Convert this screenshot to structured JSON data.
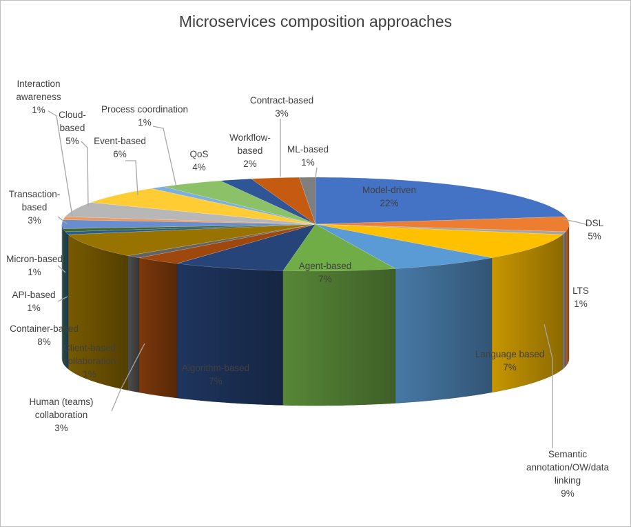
{
  "chart_data": {
    "type": "pie",
    "title": "Microservices composition approaches",
    "style": "3d",
    "slices": [
      {
        "name": "Model-driven",
        "lines": [
          "Model-driven",
          "22%"
        ],
        "value": 22,
        "color": "#4472c4"
      },
      {
        "name": "DSL",
        "lines": [
          "DSL",
          "5%"
        ],
        "value": 5,
        "color": "#ed7d31"
      },
      {
        "name": "LTS",
        "lines": [
          "LTS",
          "1%"
        ],
        "value": 1,
        "color": "#a5a5a5"
      },
      {
        "name": "Semantic annotation/OW/data linking",
        "lines": [
          "Semantic",
          "annotation/OW/data",
          "linking",
          "9%"
        ],
        "value": 9,
        "color": "#ffc000"
      },
      {
        "name": "Language based",
        "lines": [
          "Language based",
          "7%"
        ],
        "value": 7,
        "color": "#5b9bd5"
      },
      {
        "name": "Agent-based",
        "lines": [
          "Agent-based",
          "7%"
        ],
        "value": 7,
        "color": "#70ad47"
      },
      {
        "name": "Algorithm-based",
        "lines": [
          "Algorithm-based",
          "7%"
        ],
        "value": 7,
        "color": "#264478"
      },
      {
        "name": "Human (teams) collaboration",
        "lines": [
          "Human (teams)",
          "collaboration",
          "3%"
        ],
        "value": 3,
        "color": "#9e480e"
      },
      {
        "name": "Client-based collaboration",
        "lines": [
          "Client-based",
          "collaboration",
          "1%"
        ],
        "value": 1,
        "color": "#636363"
      },
      {
        "name": "Container-based",
        "lines": [
          "Container-based",
          "8%"
        ],
        "value": 8,
        "color": "#997300"
      },
      {
        "name": "API-based",
        "lines": [
          "API-based",
          "1%"
        ],
        "value": 1,
        "color": "#255e91"
      },
      {
        "name": "Micron-based",
        "lines": [
          "Micron-based",
          "1%"
        ],
        "value": 1,
        "color": "#43682b"
      },
      {
        "name": "Transaction-based",
        "lines": [
          "Transaction-",
          "based",
          "3%"
        ],
        "value": 3,
        "color": "#698ed0"
      },
      {
        "name": "Interaction awareness",
        "lines": [
          "Interaction",
          "awareness",
          "1%"
        ],
        "value": 1,
        "color": "#f1975a"
      },
      {
        "name": "Cloud-based",
        "lines": [
          "Cloud-",
          "based",
          "5%"
        ],
        "value": 5,
        "color": "#b7b7b7"
      },
      {
        "name": "Event-based",
        "lines": [
          "Event-based",
          "6%"
        ],
        "value": 6,
        "color": "#ffcd33"
      },
      {
        "name": "Process coordination",
        "lines": [
          "Process coordination",
          "1%"
        ],
        "value": 1,
        "color": "#7cafdd"
      },
      {
        "name": "QoS",
        "lines": [
          "QoS",
          "4%"
        ],
        "value": 4,
        "color": "#8cc168"
      },
      {
        "name": "Workflow-based",
        "lines": [
          "Workflow-",
          "based",
          "2%"
        ],
        "value": 2,
        "color": "#2f5597"
      },
      {
        "name": "Contract-based",
        "lines": [
          "Contract-based",
          "3%"
        ],
        "value": 3,
        "color": "#c55a11"
      },
      {
        "name": "ML-based",
        "lines": [
          "ML-based",
          "1%"
        ],
        "value": 1,
        "color": "#7f7f7f"
      }
    ]
  }
}
